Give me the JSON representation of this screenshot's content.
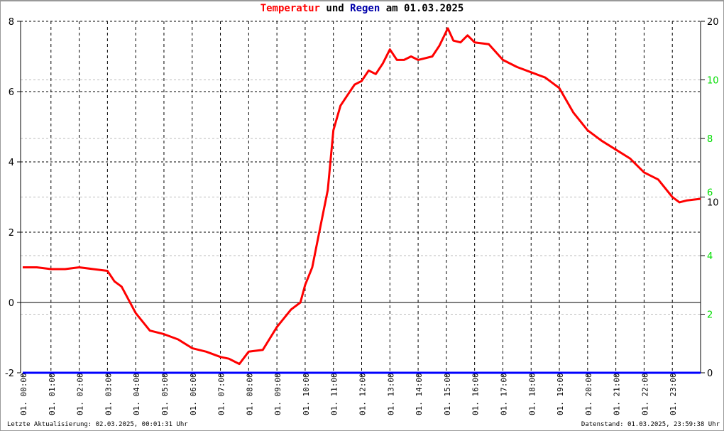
{
  "title": {
    "part1": "Temperatur",
    "part2": " und ",
    "part3": "Regen",
    "part4": " am 01.03.2025"
  },
  "colors": {
    "temperature": "#ff0000",
    "rain": "#0000aa",
    "rain_line": "#0000ff",
    "secondary_axis": "#00dd00"
  },
  "footer": {
    "left": "Letzte Aktualisierung: 02.03.2025, 00:01:31 Uhr",
    "right": "Datenstand: 01.03.2025, 23:59:38 Uhr"
  },
  "chart_data": {
    "type": "line",
    "title": "Temperatur und Regen am 01.03.2025",
    "x_ticks": [
      "01. 00:00",
      "01. 01:00",
      "01. 02:00",
      "01. 03:00",
      "01. 04:00",
      "01. 05:00",
      "01. 06:00",
      "01. 07:00",
      "01. 08:00",
      "01. 09:00",
      "01. 10:00",
      "01. 11:00",
      "01. 12:00",
      "01. 13:00",
      "01. 14:00",
      "01. 15:00",
      "01. 16:00",
      "01. 17:00",
      "01. 18:00",
      "01. 19:00",
      "01. 20:00",
      "01. 21:00",
      "01. 22:00",
      "01. 23:00"
    ],
    "xlim_hours": [
      0,
      24
    ],
    "y_left": {
      "ylim": [
        -2,
        8
      ],
      "ticks": [
        "-2",
        "0",
        "2",
        "4",
        "6",
        "8"
      ]
    },
    "y_right": {
      "ylim": [
        0,
        20
      ],
      "ticks": [
        "0",
        "10",
        "20"
      ]
    },
    "y_right_secondary_ticks": [
      "2",
      "4",
      "6",
      "8",
      "10"
    ],
    "grid": true,
    "series": [
      {
        "name": "Temperatur",
        "axis": "left",
        "x_hours": [
          0,
          0.5,
          1,
          1.5,
          2,
          2.5,
          3,
          3.25,
          3.5,
          4,
          4.5,
          5,
          5.5,
          6,
          6.5,
          7,
          7.3,
          7.67,
          8,
          8.5,
          9,
          9.5,
          9.83,
          10,
          10.25,
          10.5,
          10.8,
          11,
          11.25,
          11.5,
          11.75,
          12,
          12.25,
          12.5,
          12.75,
          13,
          13.25,
          13.5,
          13.75,
          14,
          14.5,
          14.75,
          15.05,
          15.25,
          15.5,
          15.75,
          16,
          16.5,
          17,
          17.5,
          18,
          18.5,
          19,
          19.5,
          20,
          20.5,
          21,
          21.5,
          22,
          22.5,
          23,
          23.25,
          23.5,
          24
        ],
        "values": [
          1.0,
          1.0,
          0.95,
          0.95,
          1.0,
          0.95,
          0.9,
          0.6,
          0.45,
          -0.3,
          -0.8,
          -0.9,
          -1.05,
          -1.3,
          -1.4,
          -1.55,
          -1.6,
          -1.75,
          -1.4,
          -1.35,
          -0.7,
          -0.2,
          0.0,
          0.5,
          1.0,
          2.0,
          3.2,
          4.9,
          5.6,
          5.9,
          6.2,
          6.3,
          6.6,
          6.5,
          6.8,
          7.2,
          6.9,
          6.9,
          7.0,
          6.9,
          7.0,
          7.3,
          7.8,
          7.45,
          7.4,
          7.6,
          7.4,
          7.35,
          6.9,
          6.7,
          6.55,
          6.4,
          6.1,
          5.4,
          4.9,
          4.6,
          4.35,
          4.1,
          3.7,
          3.5,
          3.0,
          2.85,
          2.9,
          2.95
        ]
      },
      {
        "name": "Regen",
        "axis": "right",
        "x_hours": [
          0,
          24
        ],
        "values": [
          0,
          0
        ]
      }
    ]
  }
}
